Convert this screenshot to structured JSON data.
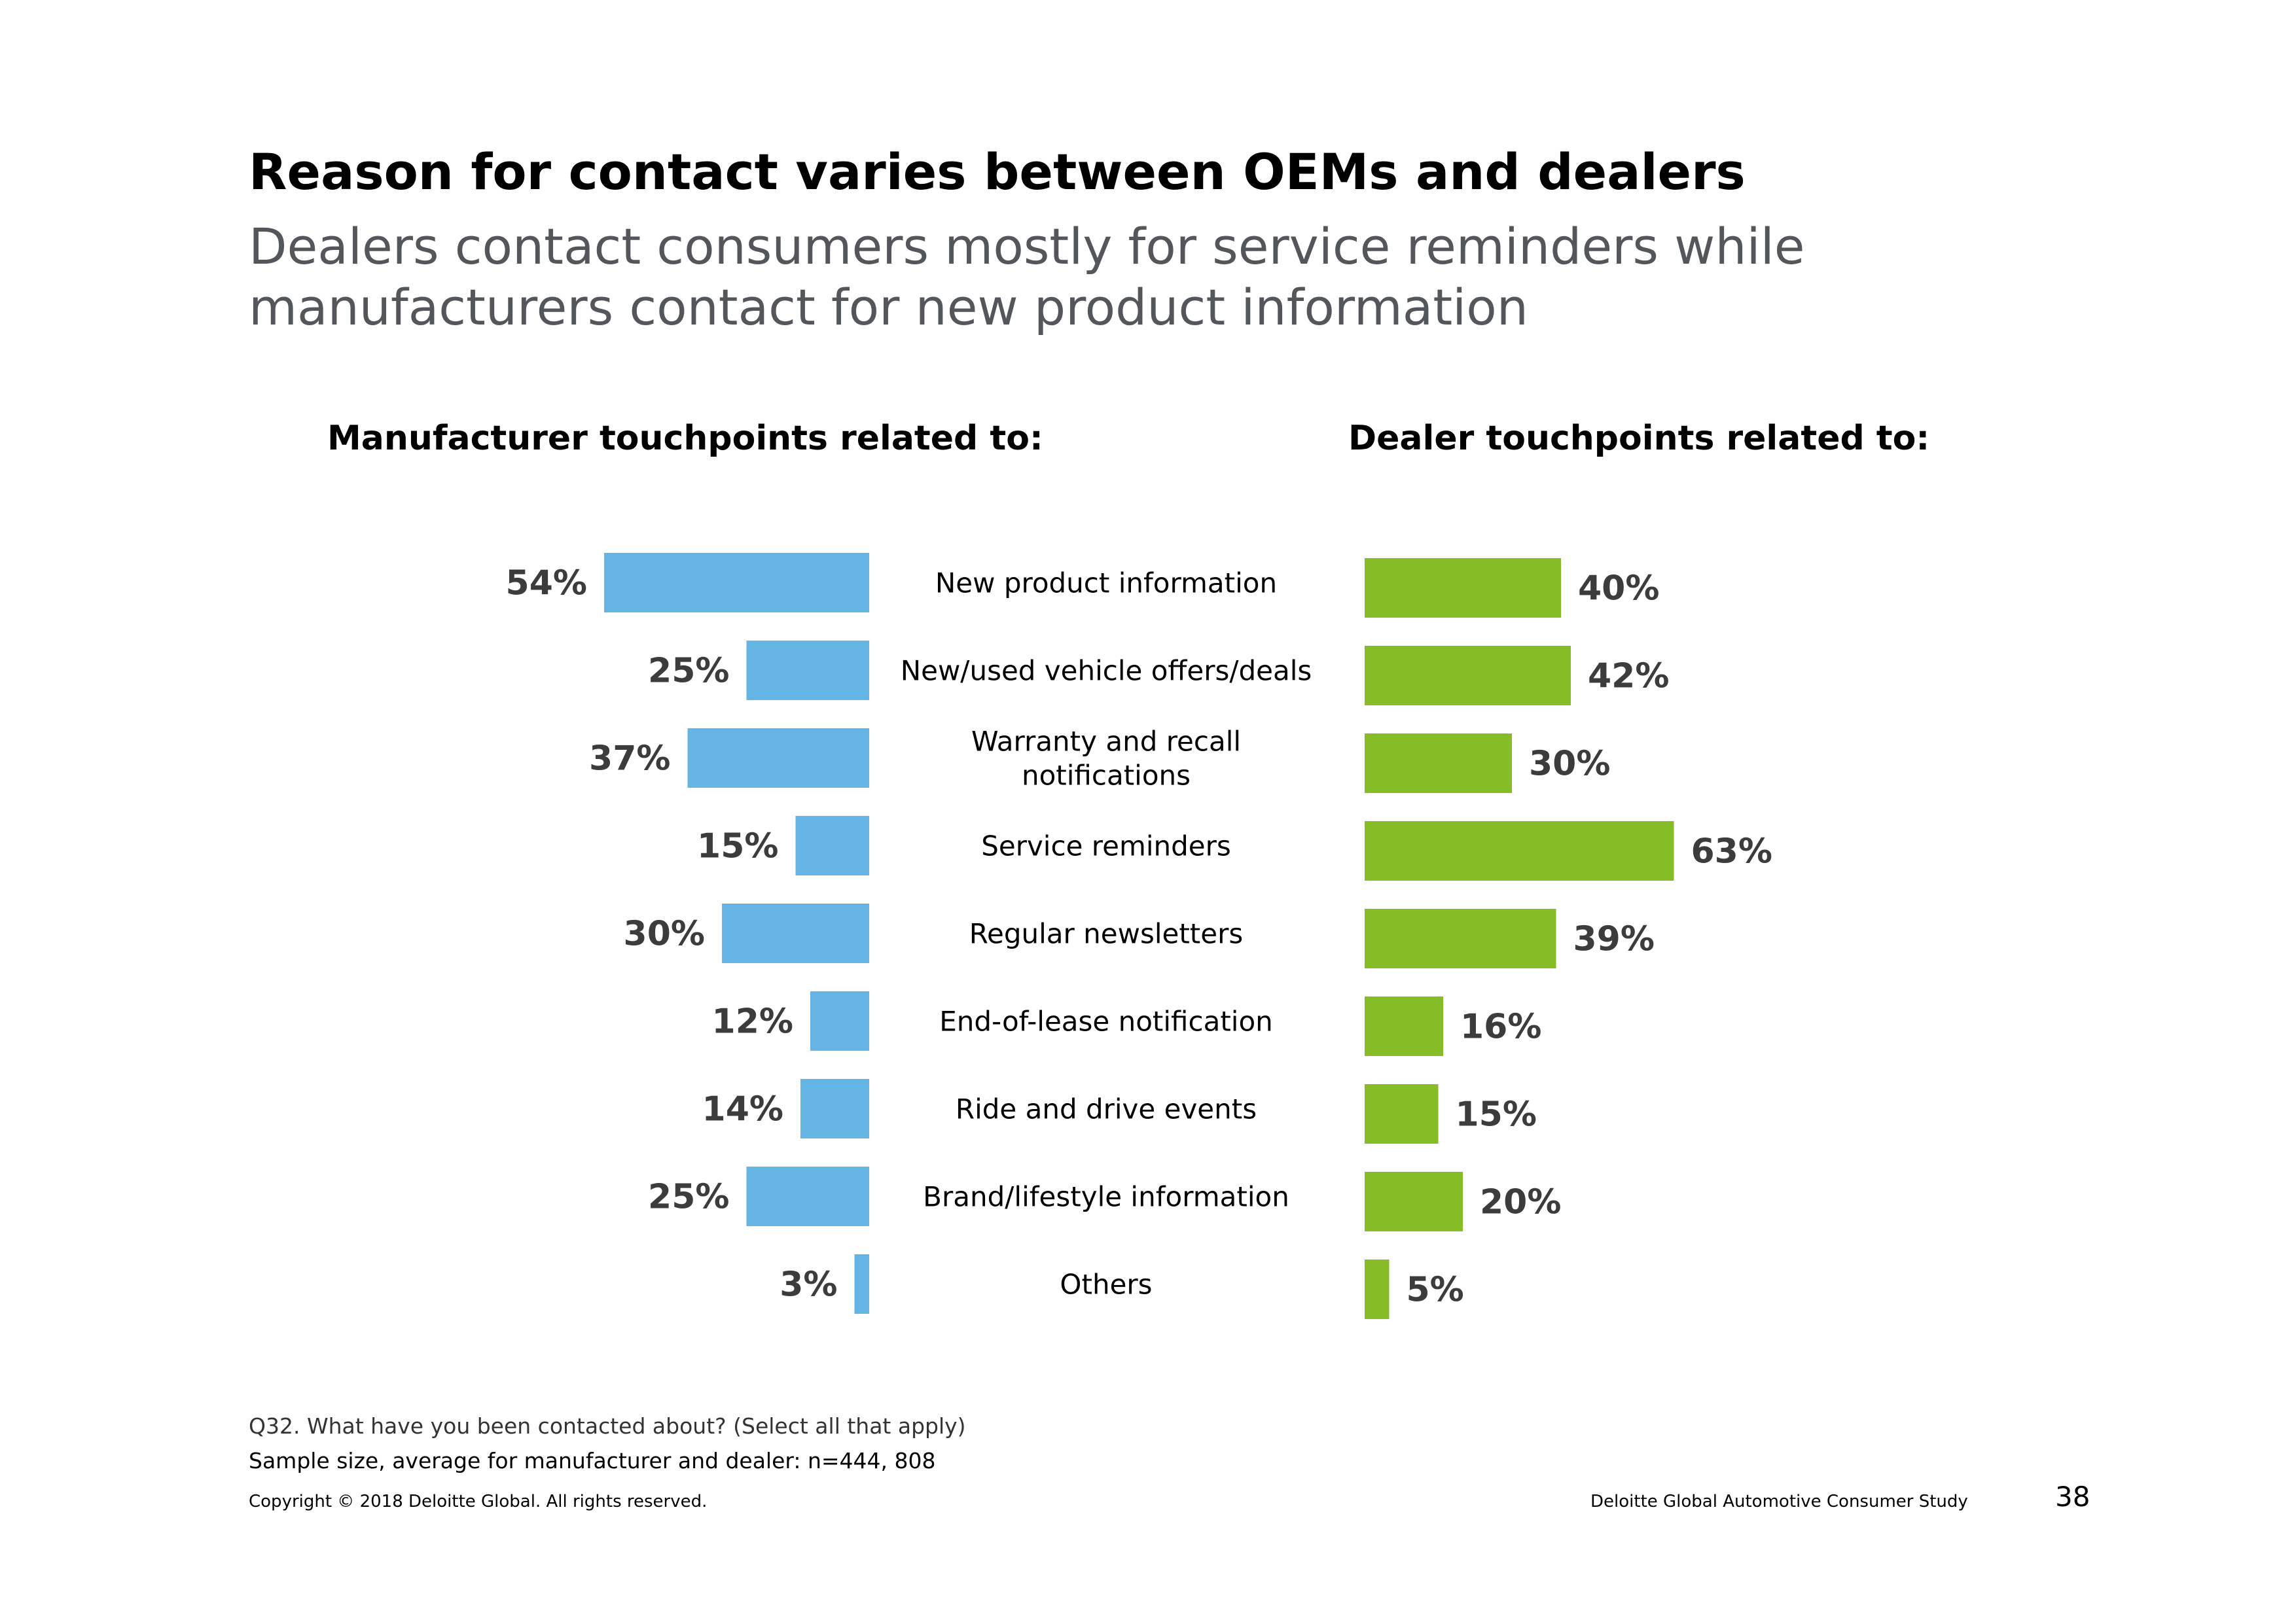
{
  "slide": {
    "title": "Reason for contact varies between OEMs and dealers",
    "subtitle": "Dealers contact consumers mostly for service reminders while manufacturers contact for new product information",
    "left_heading": "Manufacturer touchpoints related to:",
    "right_heading": "Dealer touchpoints related to:"
  },
  "footer": {
    "question": "Q32. What have you been contacted about? (Select all that apply)",
    "sample": "Sample size, average for manufacturer and dealer: n=444, 808",
    "copyright": "Copyright © 2018 Deloitte Global. All rights reserved.",
    "study": "Deloitte Global Automotive Consumer Study",
    "page_number": "38"
  },
  "colors": {
    "manufacturer": "#64b5e4",
    "dealer": "#86bc25",
    "label": "#3c3c3c"
  },
  "chart_data": {
    "type": "bar",
    "orientation": "horizontal-butterfly",
    "categories": [
      "New product information",
      "New/used vehicle offers/deals",
      "Warranty and recall notifications",
      "Service reminders",
      "Regular newsletters",
      "End-of-lease notification",
      "Ride and drive events",
      "Brand/lifestyle information",
      "Others"
    ],
    "category_lines": [
      [
        "New product information"
      ],
      [
        "New/used vehicle offers/deals"
      ],
      [
        "Warranty and recall",
        "notifications"
      ],
      [
        "Service reminders"
      ],
      [
        "Regular newsletters"
      ],
      [
        "End-of-lease notification"
      ],
      [
        "Ride and drive events"
      ],
      [
        "Brand/lifestyle information"
      ],
      [
        "Others"
      ]
    ],
    "series": [
      {
        "name": "Manufacturer",
        "values": [
          54,
          25,
          37,
          15,
          30,
          12,
          14,
          25,
          3
        ],
        "labels": [
          "54%",
          "25%",
          "37%",
          "15%",
          "30%",
          "12%",
          "14%",
          "25%",
          "3%"
        ]
      },
      {
        "name": "Dealer",
        "values": [
          40,
          42,
          30,
          63,
          39,
          16,
          15,
          20,
          5
        ],
        "labels": [
          "40%",
          "42%",
          "30%",
          "63%",
          "39%",
          "16%",
          "15%",
          "20%",
          "5%"
        ]
      }
    ],
    "unit": "%",
    "xlim": [
      0,
      100
    ]
  }
}
